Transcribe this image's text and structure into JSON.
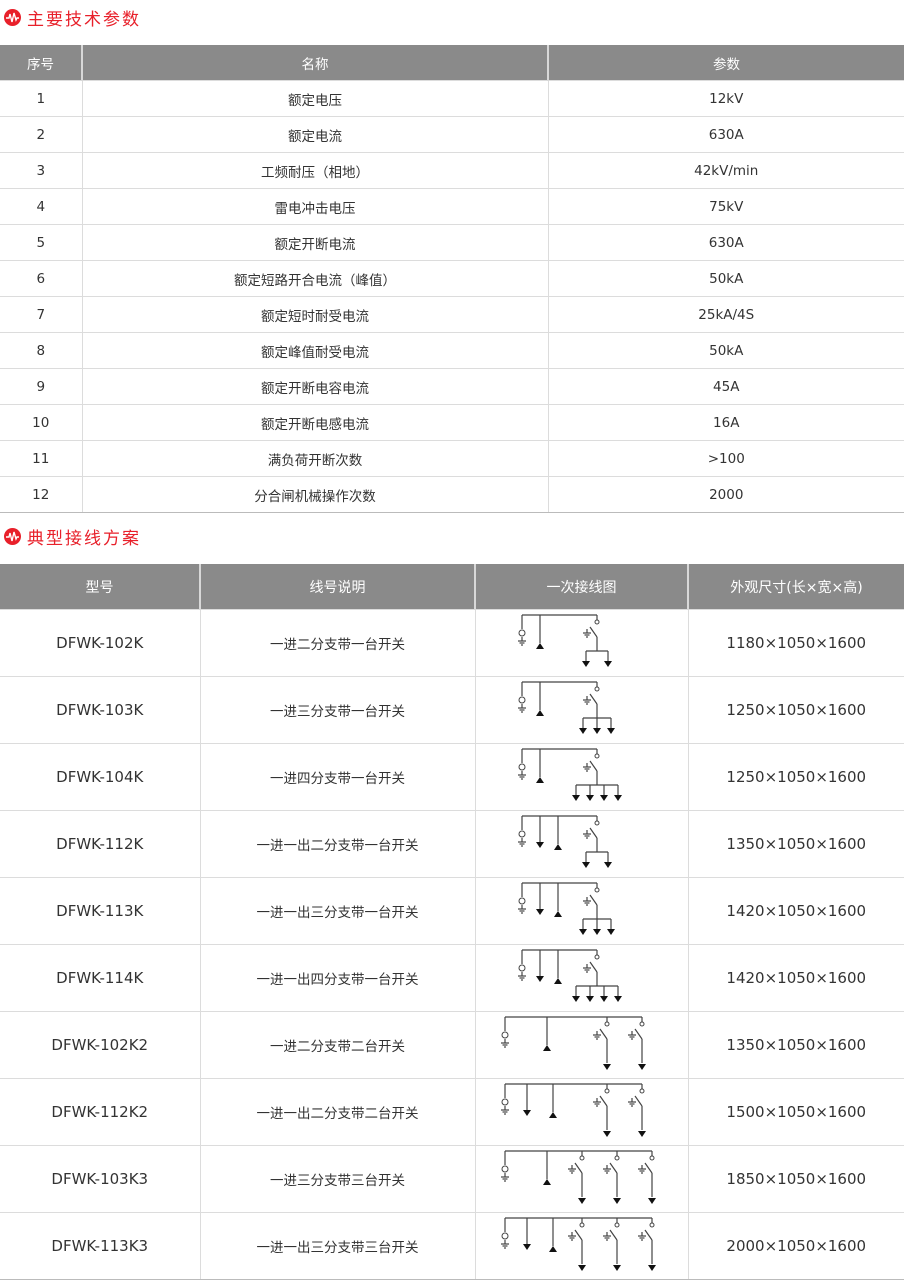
{
  "colors": {
    "accent": "#e8202a",
    "header_bg": "#8a8a8a"
  },
  "section1": {
    "title": "主要技术参数",
    "icon": "waveform-icon"
  },
  "params": {
    "headers": [
      "序号",
      "名称",
      "参数"
    ],
    "rows": [
      [
        "1",
        "额定电压",
        "12kV"
      ],
      [
        "2",
        "额定电流",
        "630A"
      ],
      [
        "3",
        "工频耐压（相地）",
        "42kV/min"
      ],
      [
        "4",
        "雷电冲击电压",
        "75kV"
      ],
      [
        "5",
        "额定开断电流",
        "630A"
      ],
      [
        "6",
        "额定短路开合电流（峰值）",
        "50kA"
      ],
      [
        "7",
        "额定短时耐受电流",
        "25kA/4S"
      ],
      [
        "8",
        "额定峰值耐受电流",
        "50kA"
      ],
      [
        "9",
        "额定开断电容电流",
        "45A"
      ],
      [
        "10",
        "额定开断电感电流",
        "16A"
      ],
      [
        "11",
        "满负荷开断次数",
        ">100"
      ],
      [
        "12",
        "分合闸机械操作次数",
        "2000"
      ]
    ]
  },
  "section2": {
    "title": "典型接线方案",
    "icon": "waveform-icon"
  },
  "schemes": {
    "headers": [
      "型号",
      "线号说明",
      "一次接线图",
      "外观尺寸(长×宽×高)"
    ],
    "rows": [
      {
        "model": "DFWK-102K",
        "desc": "一进二分支带一台开关",
        "size": "1180×1050×1600",
        "diagram": {
          "feeders_out": 0,
          "switches": 1,
          "branches": 2
        }
      },
      {
        "model": "DFWK-103K",
        "desc": "一进三分支带一台开关",
        "size": "1250×1050×1600",
        "diagram": {
          "feeders_out": 0,
          "switches": 1,
          "branches": 3
        }
      },
      {
        "model": "DFWK-104K",
        "desc": "一进四分支带一台开关",
        "size": "1250×1050×1600",
        "diagram": {
          "feeders_out": 0,
          "switches": 1,
          "branches": 4
        }
      },
      {
        "model": "DFWK-112K",
        "desc": "一进一出二分支带一台开关",
        "size": "1350×1050×1600",
        "diagram": {
          "feeders_out": 1,
          "switches": 1,
          "branches": 2
        }
      },
      {
        "model": "DFWK-113K",
        "desc": "一进一出三分支带一台开关",
        "size": "1420×1050×1600",
        "diagram": {
          "feeders_out": 1,
          "switches": 1,
          "branches": 3
        }
      },
      {
        "model": "DFWK-114K",
        "desc": "一进一出四分支带一台开关",
        "size": "1420×1050×1600",
        "diagram": {
          "feeders_out": 1,
          "switches": 1,
          "branches": 4
        }
      },
      {
        "model": "DFWK-102K2",
        "desc": "一进二分支带二台开关",
        "size": "1350×1050×1600",
        "diagram": {
          "feeders_out": 0,
          "switches": 2,
          "branches": 1
        }
      },
      {
        "model": "DFWK-112K2",
        "desc": "一进一出二分支带二台开关",
        "size": "1500×1050×1600",
        "diagram": {
          "feeders_out": 1,
          "switches": 2,
          "branches": 1
        }
      },
      {
        "model": "DFWK-103K3",
        "desc": "一进三分支带三台开关",
        "size": "1850×1050×1600",
        "diagram": {
          "feeders_out": 0,
          "switches": 3,
          "branches": 1
        }
      },
      {
        "model": "DFWK-113K3",
        "desc": "一进一出三分支带三台开关",
        "size": "2000×1050×1600",
        "diagram": {
          "feeders_out": 1,
          "switches": 3,
          "branches": 1
        }
      }
    ]
  }
}
